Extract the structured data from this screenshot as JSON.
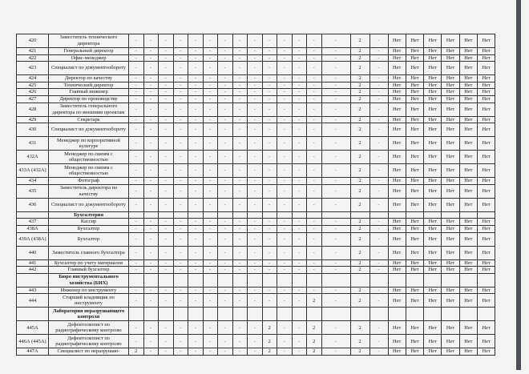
{
  "table": {
    "rows": [
      {
        "num": "420",
        "name": "Заместитель технического директора",
        "double": true,
        "cells": [
          "-",
          "-",
          "-",
          "-",
          "-",
          "-",
          "-",
          "-",
          "-",
          "-",
          "-",
          "-",
          "-",
          "-",
          "2",
          "-"
        ]
      },
      {
        "num": "421",
        "name": "Генеральный директор",
        "double": false,
        "cells": [
          "-",
          "-",
          "-",
          "-",
          "-",
          "-",
          "-",
          "-",
          "-",
          "-",
          "-",
          "-",
          "-",
          "-",
          "2",
          "-"
        ]
      },
      {
        "num": "422",
        "name": "Офис-менеджер",
        "double": false,
        "cells": [
          "-",
          "-",
          "-",
          "-",
          "-",
          "-",
          "-",
          "-",
          "-",
          "-",
          "-",
          "-",
          "-",
          "-",
          "2",
          "-"
        ]
      },
      {
        "num": "423",
        "name": "Специалист по документообороту",
        "double": true,
        "cells": [
          "-",
          "-",
          "-",
          "-",
          "-",
          "-",
          "-",
          "-",
          "-",
          "-",
          "-",
          "-",
          "-",
          "-",
          "2",
          "-"
        ]
      },
      {
        "num": "424",
        "name": "Директор по качеству",
        "double": false,
        "cells": [
          "-",
          "-",
          "-",
          "-",
          "-",
          "-",
          "-",
          "-",
          "-",
          "-",
          "-",
          "-",
          "-",
          "-",
          "2",
          "-"
        ]
      },
      {
        "num": "425",
        "name": "Технический директор",
        "double": false,
        "cells": [
          "-",
          "-",
          "-",
          "-",
          "-",
          "-",
          "-",
          "-",
          "-",
          "-",
          "-",
          "-",
          "-",
          "-",
          "2",
          "-"
        ]
      },
      {
        "num": "426",
        "name": "Главный инженер",
        "double": false,
        "cells": [
          "-",
          "-",
          "-",
          "-",
          "-",
          "-",
          "-",
          "-",
          "-",
          "-",
          "-",
          "-",
          "-",
          "-",
          "2",
          "-"
        ]
      },
      {
        "num": "427",
        "name": "Директор по производству",
        "double": false,
        "cells": [
          "-",
          "-",
          "-",
          "-",
          "-",
          "-",
          "-",
          "-",
          "-",
          "-",
          "-",
          "-",
          "-",
          "-",
          "2",
          "-"
        ]
      },
      {
        "num": "428",
        "name": "Заместитель генерального директора по внешним проектам",
        "double": true,
        "cells": [
          "-",
          "-",
          "-",
          "-",
          "-",
          "-",
          "-",
          "-",
          "-",
          "-",
          "-",
          "-",
          "-",
          "-",
          "2",
          "-"
        ]
      },
      {
        "num": "429",
        "name": "Секретарь",
        "double": false,
        "cells": [
          "-",
          "-",
          "-",
          "-",
          "-",
          "-",
          "-",
          "-",
          "-",
          "-",
          "-",
          "-",
          "-",
          "-",
          "2",
          "-"
        ]
      },
      {
        "num": "430",
        "name": "Специалист по документообороту",
        "double": true,
        "cells": [
          "-",
          "-",
          "-",
          "-",
          "-",
          "-",
          "-",
          "-",
          "-",
          "-",
          "-",
          "-",
          "-",
          "-",
          "2",
          "-"
        ]
      },
      {
        "num": "431",
        "name": "Менеджер по корпоративной культуре",
        "double": true,
        "cells": [
          "-",
          "-",
          "-",
          "-",
          "-",
          "-",
          "-",
          "-",
          "-",
          "-",
          "-",
          "-",
          "-",
          "-",
          "2",
          "-"
        ]
      },
      {
        "num": "432А",
        "name": "Менеджер по связям с общественностью",
        "double": true,
        "cells": [
          "-",
          "-",
          "-",
          "-",
          "-",
          "-",
          "-",
          "-",
          "-",
          "-",
          "-",
          "-",
          "-",
          "-",
          "2",
          "-"
        ]
      },
      {
        "num": "433А (432А)",
        "name": "Менеджер по связям с общественностью",
        "double": true,
        "cells": [
          "-",
          "-",
          "-",
          "-",
          "-",
          "-",
          "-",
          "-",
          "-",
          "-",
          "-",
          "-",
          "-",
          "-",
          "2",
          "-"
        ]
      },
      {
        "num": "434",
        "name": "Фотограф",
        "double": false,
        "cells": [
          "-",
          "-",
          "-",
          "-",
          "-",
          "-",
          "-",
          "-",
          "-",
          "-",
          "-",
          "-",
          "-",
          "-",
          "2",
          "-"
        ]
      },
      {
        "num": "435",
        "name": "Заместитель директора по качеству",
        "double": true,
        "cells": [
          "-",
          "-",
          "-",
          "-",
          "-",
          "-",
          "-",
          "-",
          "-",
          "-",
          "-",
          "-",
          "-",
          "-",
          "2",
          "-"
        ]
      },
      {
        "num": "436",
        "name": "Специалист по документообороту",
        "double": true,
        "cells": [
          "-",
          "-",
          "-",
          "-",
          "-",
          "-",
          "-",
          "-",
          "-",
          "-",
          "-",
          "-",
          "-",
          "-",
          "2",
          "-"
        ]
      },
      {
        "num": "",
        "name": "Бухгалтерия",
        "double": false,
        "section": true
      },
      {
        "num": "437",
        "name": "Кассир",
        "double": false,
        "cells": [
          "-",
          "-",
          "-",
          "-",
          "-",
          "-",
          "-",
          "-",
          "-",
          "-",
          "-",
          "-",
          "-",
          "-",
          "2",
          "-"
        ]
      },
      {
        "num": "438А",
        "name": "Бухгалтер",
        "double": false,
        "cells": [
          "-",
          "-",
          "-",
          "-",
          "-",
          "-",
          "-",
          "-",
          "-",
          "-",
          "-",
          "-",
          "-",
          "-",
          "2",
          "-"
        ]
      },
      {
        "num": "439А (438А)",
        "name": "Бухгалтер",
        "double": true,
        "cells": [
          "-",
          "-",
          "-",
          "-",
          "-",
          "-",
          "-",
          "-",
          "-",
          "-",
          "-",
          "-",
          "-",
          "-",
          "2",
          "-"
        ]
      },
      {
        "num": "440",
        "name": "Заместитель главного бухгалтера",
        "double": true,
        "cells": [
          "-",
          "-",
          "-",
          "-",
          "-",
          "-",
          "-",
          "-",
          "-",
          "-",
          "-",
          "-",
          "-",
          "-",
          "2",
          "-"
        ]
      },
      {
        "num": "441",
        "name": "Бухгалтер по учету материалов",
        "double": false,
        "cells": [
          "-",
          "-",
          "-",
          "-",
          "-",
          "-",
          "-",
          "-",
          "-",
          "-",
          "-",
          "-",
          "-",
          "-",
          "2",
          "-"
        ]
      },
      {
        "num": "442",
        "name": "Главный бухгалтер",
        "double": false,
        "cells": [
          "-",
          "-",
          "-",
          "-",
          "-",
          "-",
          "-",
          "-",
          "-",
          "-",
          "-",
          "-",
          "-",
          "-",
          "2",
          "-"
        ]
      },
      {
        "num": "",
        "name": "Бюро инструментального хозяйства (БИХ)",
        "double": true,
        "section": true
      },
      {
        "num": "443",
        "name": "Инженер по инструменту",
        "double": false,
        "cells": [
          "-",
          "-",
          "-",
          "-",
          "-",
          "-",
          "-",
          "-",
          "-",
          "-",
          "-",
          "-",
          "-",
          "-",
          "2",
          "-"
        ]
      },
      {
        "num": "444",
        "name": "Старший кладовщик по инструменту",
        "double": true,
        "cells": [
          "-",
          "-",
          "-",
          "-",
          "-",
          "-",
          "-",
          "-",
          "-",
          "-",
          "-",
          "-",
          "2",
          "-",
          "2",
          "-"
        ]
      },
      {
        "num": "",
        "name": "Лаборатория неразрушающего контроля",
        "double": true,
        "section": true
      },
      {
        "num": "445А",
        "name": "Дефектоскопист по радиографическому контролю",
        "double": true,
        "cells": [
          "-",
          "-",
          "-",
          "-",
          "-",
          "-",
          "-",
          "-",
          "-",
          "2",
          "-",
          "-",
          "2",
          "-",
          "2",
          "-"
        ]
      },
      {
        "num": "446А (445А)",
        "name": "Дефектоскопист по радиографическому контролю",
        "double": true,
        "cells": [
          "-",
          "-",
          "-",
          "-",
          "-",
          "-",
          "-",
          "-",
          "-",
          "2",
          "-",
          "-",
          "2",
          "-",
          "2",
          "-"
        ]
      },
      {
        "num": "447А",
        "name": "Специалист по неразрушаю-",
        "double": false,
        "cells": [
          "2",
          "-",
          "-",
          "-",
          "-",
          "-",
          "-",
          "-",
          "-",
          "2",
          "-",
          "-",
          "2",
          "-",
          "2",
          "-"
        ]
      }
    ],
    "answer_value": "Нет",
    "answer_columns": 6
  }
}
